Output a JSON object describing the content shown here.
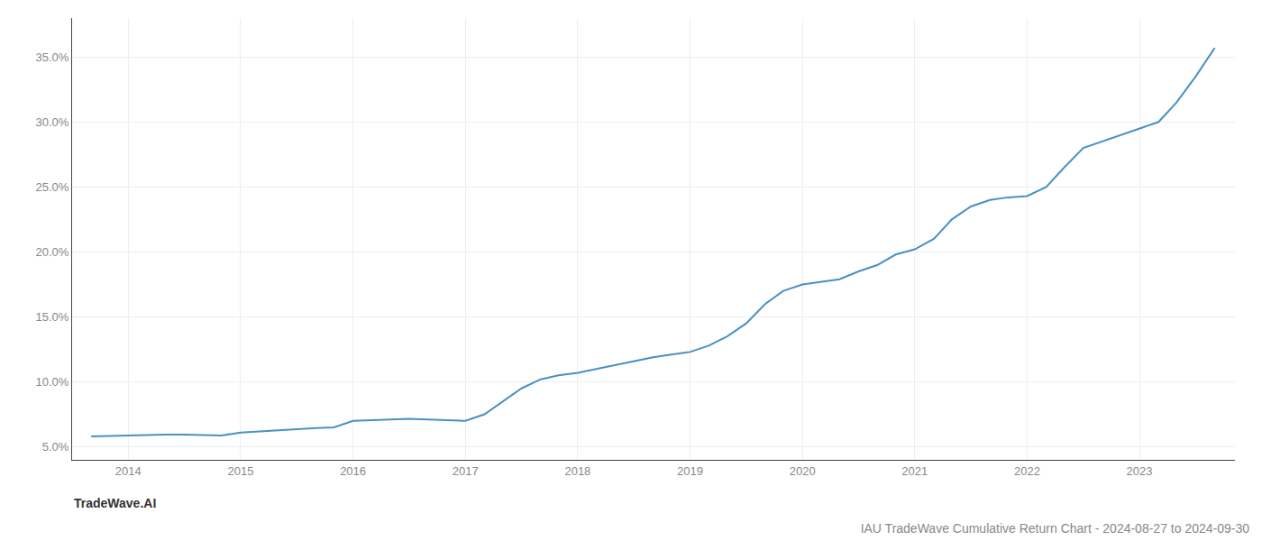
{
  "chart_data": {
    "type": "line",
    "title": "IAU TradeWave Cumulative Return Chart - 2024-08-27 to 2024-09-30",
    "annotations": [
      "TradeWave.AI"
    ],
    "x": [
      2013.67,
      2014.0,
      2014.17,
      2014.33,
      2014.5,
      2014.67,
      2014.83,
      2015.0,
      2015.17,
      2015.33,
      2015.5,
      2015.67,
      2015.83,
      2016.0,
      2016.17,
      2016.33,
      2016.5,
      2016.67,
      2016.83,
      2017.0,
      2017.17,
      2017.33,
      2017.5,
      2017.67,
      2017.83,
      2018.0,
      2018.17,
      2018.33,
      2018.5,
      2018.67,
      2018.83,
      2019.0,
      2019.17,
      2019.33,
      2019.5,
      2019.67,
      2019.83,
      2020.0,
      2020.17,
      2020.33,
      2020.5,
      2020.67,
      2020.83,
      2021.0,
      2021.17,
      2021.33,
      2021.5,
      2021.67,
      2021.83,
      2022.0,
      2022.17,
      2022.33,
      2022.5,
      2022.67,
      2022.83,
      2023.0,
      2023.17,
      2023.33,
      2023.5,
      2023.67
    ],
    "values": [
      5.8,
      5.9,
      5.95,
      5.95,
      5.95,
      5.9,
      5.88,
      6.1,
      6.2,
      6.3,
      6.4,
      6.45,
      6.5,
      7.0,
      7.05,
      7.1,
      7.15,
      7.1,
      7.05,
      7.0,
      7.5,
      8.5,
      9.5,
      10.2,
      10.5,
      10.7,
      11.0,
      11.3,
      11.6,
      11.9,
      12.1,
      12.3,
      12.8,
      13.5,
      14.5,
      16.0,
      17.0,
      17.5,
      17.7,
      17.9,
      18.5,
      19.0,
      19.8,
      20.2,
      21.0,
      22.5,
      23.5,
      24.0,
      24.2,
      24.3,
      25.0,
      26.5,
      28.0,
      28.5,
      29.0,
      29.5,
      30.0,
      31.5,
      33.5,
      35.7
    ],
    "color": "#4a90c4",
    "xlim": [
      2013.5,
      2023.85
    ],
    "xticks": [
      2014,
      2015,
      2016,
      2017,
      2018,
      2019,
      2020,
      2021,
      2022,
      2023
    ],
    "ylim": [
      4.0,
      38.0
    ],
    "yticks": [
      {
        "value": 5.0,
        "label": "5.0%"
      },
      {
        "value": 10.0,
        "label": "10.0%"
      },
      {
        "value": 15.0,
        "label": "15.0%"
      },
      {
        "value": 20.0,
        "label": "20.0%"
      },
      {
        "value": 25.0,
        "label": "25.0%"
      },
      {
        "value": 30.0,
        "label": "30.0%"
      },
      {
        "value": 35.0,
        "label": "35.0%"
      }
    ],
    "grid": true
  }
}
